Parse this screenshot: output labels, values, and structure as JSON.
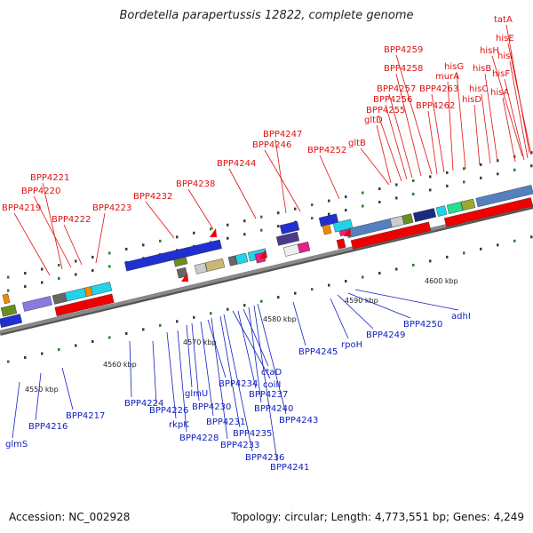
{
  "title": "Bordetella parapertussis 12822, complete genome",
  "footer": {
    "accession": "Accession: NC_002928",
    "info": "Topology: circular; Length: 4,773,551 bp; Genes: 4,249"
  },
  "colors": {
    "label_red": "#e01010",
    "label_blue": "#1020c0",
    "backbone": "#8a8a8a"
  },
  "scale_labels": [
    "4550 kbp",
    "4560 kbp",
    "4570 kbp",
    "4580 kbp",
    "4590 kbp",
    "4600 kbp"
  ],
  "top_genes": [
    "BPP4219",
    "BPP4221",
    "BPP4220",
    "BPP4222",
    "BPP4223",
    "BPP4232",
    "BPP4238",
    "BPP4244",
    "BPP4247",
    "BPP4246",
    "BPP4252",
    "gltB",
    "BPP4259",
    "BPP4258",
    "BPP4257",
    "BPP4256",
    "BPP4255",
    "gltD",
    "hisG",
    "murA",
    "BPP4263",
    "BPP4262",
    "hisB",
    "hisC",
    "hisD",
    "tatA",
    "hisE",
    "hisH",
    "hisI",
    "hisF",
    "hisA"
  ],
  "bottom_genes": [
    "glmS",
    "BPP4216",
    "BPP4217",
    "BPP4224",
    "BPP4226",
    "rkpK",
    "BPP4228",
    "glmU",
    "BPP4230",
    "BPP4231",
    "BPP4234",
    "BPP4233",
    "BPP4235",
    "BPP4236",
    "coiII",
    "BPP4237",
    "ctaD",
    "BPP4240",
    "BPP4241",
    "BPP4243",
    "BPP4245",
    "rpoH",
    "BPP4249",
    "BPP4250",
    "adhI"
  ]
}
